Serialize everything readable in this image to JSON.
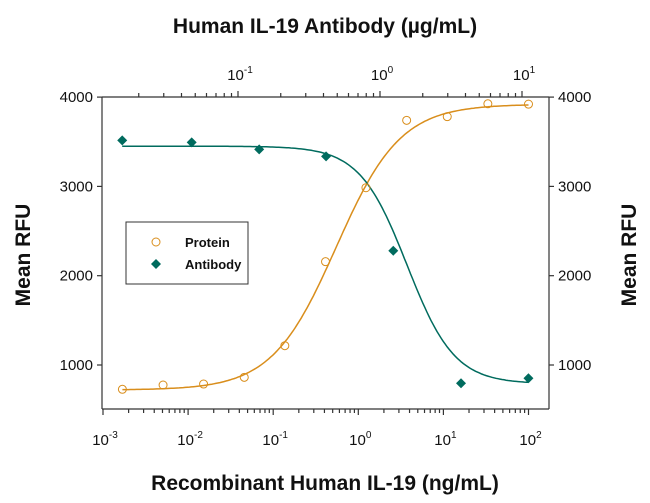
{
  "chart_data": {
    "type": "scatter",
    "title": "Human IL-19 Antibody (µg/mL)",
    "xlabel": "Recombinant Human IL-19 (ng/mL)",
    "ylabel": "Mean RFU",
    "ylabel_right": "Mean RFU",
    "x_scale": "log",
    "x_top_scale": "log",
    "xlim": [
      0.001,
      175
    ],
    "x_top_lim": [
      0.011,
      15
    ],
    "ylim": [
      500,
      4000
    ],
    "x_ticks": [
      {
        "base": "10",
        "exp": "-3"
      },
      {
        "base": "10",
        "exp": "-2"
      },
      {
        "base": "10",
        "exp": "-1"
      },
      {
        "base": "10",
        "exp": "0"
      },
      {
        "base": "10",
        "exp": "1"
      },
      {
        "base": "10",
        "exp": "2"
      }
    ],
    "x_top_ticks": [
      {
        "base": "10",
        "exp": "-1"
      },
      {
        "base": "10",
        "exp": "0"
      },
      {
        "base": "10",
        "exp": "1"
      }
    ],
    "y_ticks": [
      "1000",
      "2000",
      "3000",
      "4000"
    ],
    "grid": false,
    "legend_position": "middle-left",
    "series": [
      {
        "name": "Protein",
        "axis": "bottom",
        "marker": "open-circle",
        "color": "#d98e1c",
        "curve": "sigmoid-fit",
        "x": [
          0.00169,
          0.00508,
          0.0152,
          0.0457,
          0.137,
          0.412,
          1.23,
          3.7,
          11.1,
          33.3,
          100
        ],
        "y": [
          728,
          776,
          787,
          862,
          1216,
          2157,
          2985,
          3740,
          3781,
          3925,
          3921
        ]
      },
      {
        "name": "Antibody",
        "axis": "top",
        "marker": "filled-diamond",
        "color": "#006b5e",
        "curve": "sigmoid-fit",
        "x": [
          0.0153,
          0.0472,
          0.141,
          0.417,
          1.24,
          3.72,
          11.1
        ],
        "y": [
          3515,
          3493,
          3414,
          3336,
          2280,
          795,
          851
        ]
      }
    ]
  }
}
